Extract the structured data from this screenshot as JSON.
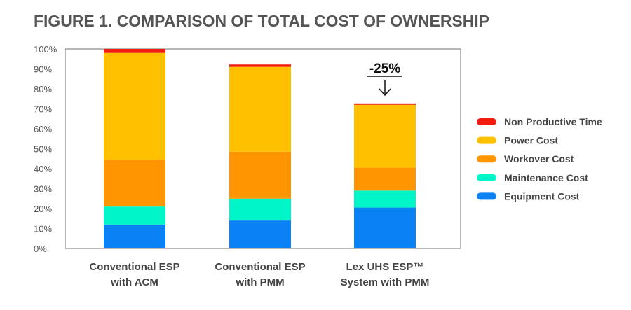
{
  "chart_data": {
    "type": "bar",
    "stacked": true,
    "title": "FIGURE 1. COMPARISON OF TOTAL COST OF OWNERSHIP",
    "categories": [
      [
        "Conventional ESP",
        "with ACM"
      ],
      [
        "Conventional ESP",
        "with PMM"
      ],
      [
        "Lex UHS ESP™",
        "System with PMM"
      ]
    ],
    "ylim": [
      0,
      100
    ],
    "y_ticks": [
      "0%",
      "10%",
      "20%",
      "30%",
      "40%",
      "50%",
      "60%",
      "70%",
      "80%",
      "90%",
      "100%"
    ],
    "grid": false,
    "legend_placement": "right",
    "series": [
      {
        "name": "Equipment Cost",
        "color": "#0a82f5",
        "values": [
          12,
          14,
          20.5
        ]
      },
      {
        "name": "Maintenance Cost",
        "color": "#00f5c8",
        "values": [
          9,
          11,
          8.5
        ]
      },
      {
        "name": "Workover Cost",
        "color": "#ff9500",
        "values": [
          23.5,
          23.5,
          11.5
        ]
      },
      {
        "name": "Power Cost",
        "color": "#ffc000",
        "values": [
          53.5,
          42.5,
          31.5
        ]
      },
      {
        "name": "Non Productive Time",
        "color": "#f01c10",
        "values": [
          2,
          1.2,
          0.7
        ]
      }
    ],
    "legend_order": [
      "Non Productive Time",
      "Power Cost",
      "Workover Cost",
      "Maintenance Cost",
      "Equipment Cost"
    ],
    "annotation": {
      "text": "-25%",
      "category_index": 2,
      "arrow": "down-arrow"
    }
  }
}
